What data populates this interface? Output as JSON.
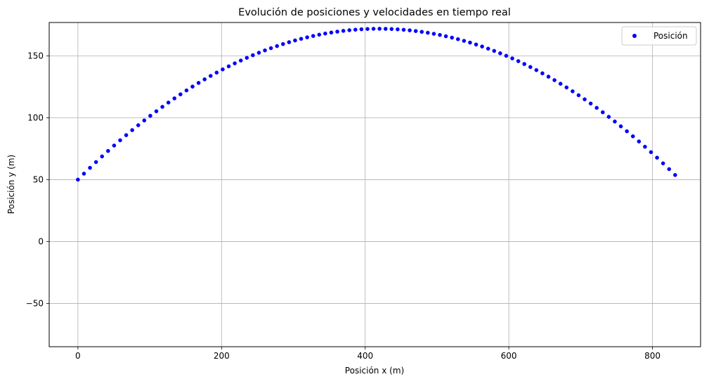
{
  "chart_data": {
    "type": "scatter",
    "title": "Evolución de posiciones y velocidades en tiempo real",
    "xlabel": "Posición x (m)",
    "ylabel": "Posición y (m)",
    "xlim": [
      -40,
      867
    ],
    "ylim": [
      -85,
      177
    ],
    "xticks": [
      0,
      200,
      400,
      600,
      800
    ],
    "yticks": [
      -50,
      0,
      50,
      100,
      150
    ],
    "xtick_labels": [
      "0",
      "200",
      "400",
      "600",
      "800"
    ],
    "ytick_labels": [
      "−50",
      "0",
      "50",
      "100",
      "150"
    ],
    "grid": true,
    "legend_position": "top-right",
    "series": [
      {
        "name": "Posición",
        "color": "#0000ff",
        "x0": 0,
        "y0": 50,
        "x_step": 8.4,
        "y_step0": 4.84,
        "y_step_decrement": 0.098,
        "count": 100
      }
    ]
  }
}
